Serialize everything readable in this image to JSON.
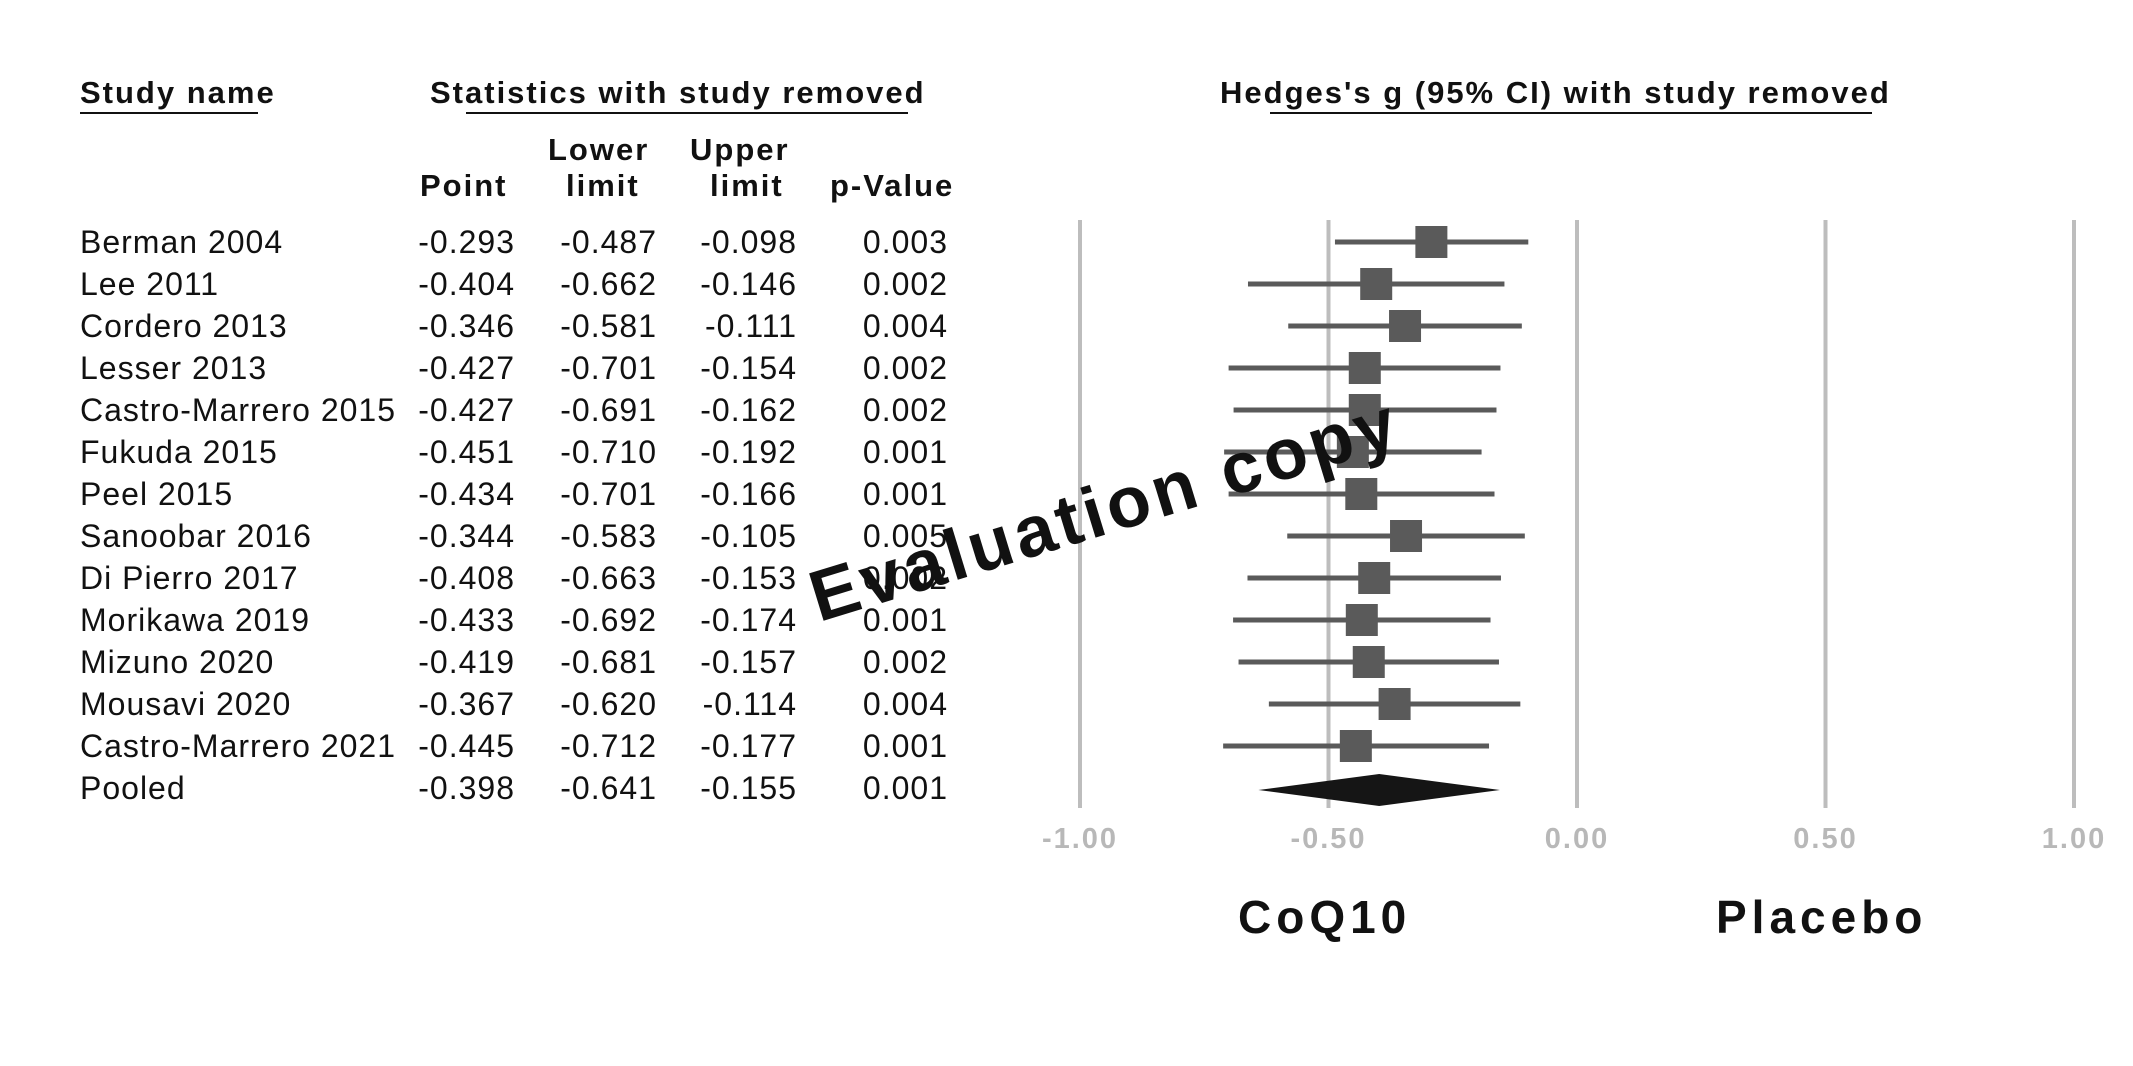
{
  "headers": {
    "study_name": "Study name",
    "stats": "Statistics with study removed",
    "plot": "Hedges's g (95% CI) with study removed",
    "point": "Point",
    "lower_1": "Lower",
    "lower_2": "limit",
    "upper_1": "Upper",
    "upper_2": "limit",
    "pvalue": "p-Value"
  },
  "rows": [
    {
      "name": "Berman 2004",
      "point": "-0.293",
      "lower": "-0.487",
      "upper": "-0.098",
      "p": "0.003"
    },
    {
      "name": "Lee 2011",
      "point": "-0.404",
      "lower": "-0.662",
      "upper": "-0.146",
      "p": "0.002"
    },
    {
      "name": "Cordero 2013",
      "point": "-0.346",
      "lower": "-0.581",
      "upper": "-0.111",
      "p": "0.004"
    },
    {
      "name": "Lesser 2013",
      "point": "-0.427",
      "lower": "-0.701",
      "upper": "-0.154",
      "p": "0.002"
    },
    {
      "name": "Castro-Marrero 2015",
      "point": "-0.427",
      "lower": "-0.691",
      "upper": "-0.162",
      "p": "0.002"
    },
    {
      "name": "Fukuda 2015",
      "point": "-0.451",
      "lower": "-0.710",
      "upper": "-0.192",
      "p": "0.001"
    },
    {
      "name": "Peel 2015",
      "point": "-0.434",
      "lower": "-0.701",
      "upper": "-0.166",
      "p": "0.001"
    },
    {
      "name": "Sanoobar 2016",
      "point": "-0.344",
      "lower": "-0.583",
      "upper": "-0.105",
      "p": "0.005"
    },
    {
      "name": "Di Pierro 2017",
      "point": "-0.408",
      "lower": "-0.663",
      "upper": "-0.153",
      "p": "0.002"
    },
    {
      "name": "Morikawa 2019",
      "point": "-0.433",
      "lower": "-0.692",
      "upper": "-0.174",
      "p": "0.001"
    },
    {
      "name": "Mizuno 2020",
      "point": "-0.419",
      "lower": "-0.681",
      "upper": "-0.157",
      "p": "0.002"
    },
    {
      "name": "Mousavi 2020",
      "point": "-0.367",
      "lower": "-0.620",
      "upper": "-0.114",
      "p": "0.004"
    },
    {
      "name": "Castro-Marrero 2021",
      "point": "-0.445",
      "lower": "-0.712",
      "upper": "-0.177",
      "p": "0.001"
    },
    {
      "name": "Pooled",
      "point": "-0.398",
      "lower": "-0.641",
      "upper": "-0.155",
      "p": "0.001"
    }
  ],
  "favours_left": "CoQ10",
  "favours_right": "Placebo",
  "watermark": "Evaluation copy",
  "colors": {
    "marker": "#5a5a5a",
    "ci_line": "#5a5a5a",
    "diamond": "#151515",
    "gridline": "#bdbdbd",
    "tick_label": "#b8b8b8"
  },
  "chart_data": {
    "type": "forest",
    "title": "Hedges's g (95% CI) with study removed",
    "xlim": [
      -1.0,
      1.0
    ],
    "xticks": [
      -1.0,
      -0.5,
      0.0,
      0.5,
      1.0
    ],
    "xtick_labels": [
      "-1.00",
      "-0.50",
      "0.00",
      "0.50",
      "1.00"
    ],
    "grid": true,
    "studies": [
      {
        "name": "Berman 2004",
        "point": -0.293,
        "lower": -0.487,
        "upper": -0.098
      },
      {
        "name": "Lee 2011",
        "point": -0.404,
        "lower": -0.662,
        "upper": -0.146
      },
      {
        "name": "Cordero 2013",
        "point": -0.346,
        "lower": -0.581,
        "upper": -0.111
      },
      {
        "name": "Lesser 2013",
        "point": -0.427,
        "lower": -0.701,
        "upper": -0.154
      },
      {
        "name": "Castro-Marrero 2015",
        "point": -0.427,
        "lower": -0.691,
        "upper": -0.162
      },
      {
        "name": "Fukuda 2015",
        "point": -0.451,
        "lower": -0.71,
        "upper": -0.192
      },
      {
        "name": "Peel 2015",
        "point": -0.434,
        "lower": -0.701,
        "upper": -0.166
      },
      {
        "name": "Sanoobar 2016",
        "point": -0.344,
        "lower": -0.583,
        "upper": -0.105
      },
      {
        "name": "Di Pierro 2017",
        "point": -0.408,
        "lower": -0.663,
        "upper": -0.153
      },
      {
        "name": "Morikawa 2019",
        "point": -0.433,
        "lower": -0.692,
        "upper": -0.174
      },
      {
        "name": "Mizuno 2020",
        "point": -0.419,
        "lower": -0.681,
        "upper": -0.157
      },
      {
        "name": "Mousavi 2020",
        "point": -0.367,
        "lower": -0.62,
        "upper": -0.114
      },
      {
        "name": "Castro-Marrero 2021",
        "point": -0.445,
        "lower": -0.712,
        "upper": -0.177
      }
    ],
    "pooled": {
      "name": "Pooled",
      "point": -0.398,
      "lower": -0.641,
      "upper": -0.155
    }
  }
}
